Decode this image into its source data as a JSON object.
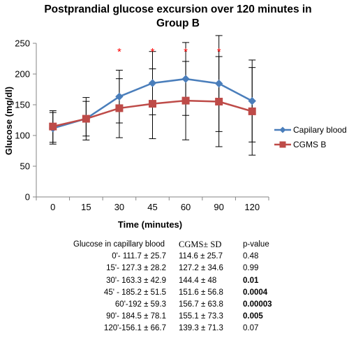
{
  "chart_data": {
    "type": "line",
    "title": "Postprandial glucose excursion over 120 minutes in Group B",
    "xlabel": "Time (minutes)",
    "ylabel": "Glucose (mg/dl)",
    "categories": [
      "0",
      "15",
      "30",
      "45",
      "60",
      "90",
      "120"
    ],
    "ylim": [
      0,
      250
    ],
    "yticks": [
      0,
      50,
      100,
      150,
      200,
      250
    ],
    "grid": false,
    "legend_position": "right",
    "series": [
      {
        "name": "Capilary blood B",
        "color": "#4a7ebb",
        "marker": "diamond",
        "values": [
          111.7,
          127.3,
          163.3,
          185.2,
          192,
          184.5,
          156.1
        ],
        "sd": [
          25.7,
          28.2,
          42.9,
          51.5,
          59.3,
          78.1,
          66.7
        ]
      },
      {
        "name": "CGMS B",
        "color": "#be4b48",
        "marker": "square",
        "values": [
          114.6,
          127.2,
          144.4,
          151.6,
          156.7,
          155.1,
          139.3
        ],
        "sd": [
          25.7,
          34.6,
          48,
          56.8,
          63.8,
          73.3,
          71.3
        ]
      }
    ],
    "significance_markers": {
      "symbol": "*",
      "color": "#ff0000",
      "at_categories": [
        "30",
        "45",
        "60",
        "90"
      ]
    }
  },
  "table": {
    "headers": [
      "Glucose in capillary blood",
      "CGMS± SD",
      "p-value"
    ],
    "rows": [
      {
        "capillary": "0'-  111.7 ± 25.7",
        "cgms": "114.6 ± 25.7",
        "p": "0.48",
        "bold": false
      },
      {
        "capillary": "15'- 127.3 ± 28.2",
        "cgms": "127.2 ± 34.6",
        "p": "0.99",
        "bold": false
      },
      {
        "capillary": "30'- 163.3 ± 42.9",
        "cgms": "144.4 ± 48",
        "p": "0.01",
        "bold": true
      },
      {
        "capillary": "45' - 185.2 ± 51.5",
        "cgms": "151.6 ± 56.8",
        "p": "0.0004",
        "bold": true
      },
      {
        "capillary": "60'-192 ± 59.3",
        "cgms": "156.7 ± 63.8",
        "p": "0.00003",
        "bold": true
      },
      {
        "capillary": "90'- 184.5 ± 78.1",
        "cgms": "155.1 ± 73.3",
        "p": "0.005",
        "bold": true
      },
      {
        "capillary": "120'-156.1 ± 66.7",
        "cgms": "139.3 ± 71.3",
        "p": "0.07",
        "bold": false
      }
    ]
  }
}
